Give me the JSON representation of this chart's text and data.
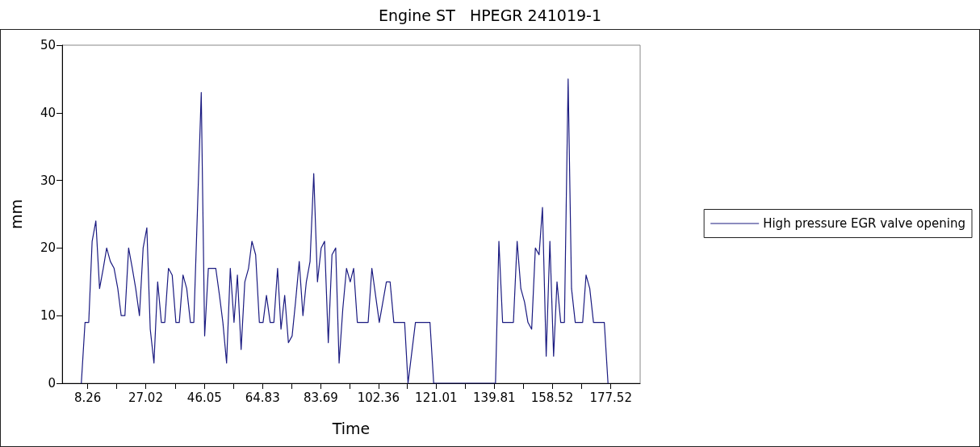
{
  "chart_data": {
    "type": "line",
    "title": "Engine ST   HPEGR 241019-1",
    "xlabel": "Time",
    "ylabel": "mm",
    "x": [
      6.2,
      7.4,
      8.6,
      9.7,
      10.9,
      12.1,
      13.3,
      14.4,
      15.6,
      16.8,
      18.0,
      19.1,
      20.3,
      21.5,
      22.7,
      23.8,
      25.0,
      26.2,
      27.4,
      28.5,
      29.7,
      30.9,
      32.1,
      33.2,
      34.4,
      35.6,
      36.8,
      37.9,
      39.1,
      40.3,
      41.5,
      42.6,
      45.0,
      46.1,
      47.3,
      49.7,
      50.9,
      52.0,
      53.2,
      54.4,
      55.6,
      56.7,
      57.9,
      59.1,
      60.3,
      61.4,
      62.6,
      63.8,
      65.0,
      66.1,
      67.3,
      68.5,
      69.7,
      70.8,
      72.0,
      73.2,
      74.4,
      75.5,
      76.7,
      77.9,
      79.0,
      80.2,
      81.4,
      82.6,
      83.8,
      84.9,
      86.1,
      87.3,
      88.5,
      89.6,
      90.8,
      92.0,
      93.2,
      94.3,
      95.5,
      99.0,
      100.2,
      101.4,
      102.6,
      104.9,
      106.1,
      107.3,
      110.8,
      111.9,
      114.3,
      119.0,
      120.2,
      140.2,
      141.3,
      142.5,
      146.0,
      147.2,
      148.4,
      149.6,
      150.7,
      151.9,
      153.1,
      154.3,
      155.4,
      156.6,
      157.8,
      159.0,
      160.1,
      161.3,
      162.5,
      163.7,
      164.8,
      166.0,
      168.4,
      169.5,
      170.7,
      171.9,
      175.4,
      176.6
    ],
    "series": [
      {
        "name": "High pressure EGR valve opening",
        "color": "#1a1a80",
        "values": [
          0,
          9,
          9,
          21,
          24,
          14,
          17,
          20,
          18,
          17,
          14,
          10,
          10,
          20,
          17,
          14,
          10,
          20,
          23,
          8,
          3,
          15,
          9,
          9,
          17,
          16,
          9,
          9,
          16,
          14,
          9,
          9,
          43,
          7,
          17,
          17,
          13,
          9,
          3,
          17,
          9,
          16,
          5,
          15,
          17,
          21,
          19,
          9,
          9,
          13,
          9,
          9,
          17,
          8,
          13,
          6,
          7,
          12,
          18,
          10,
          15,
          18,
          31,
          15,
          20,
          21,
          6,
          19,
          20,
          3,
          11,
          17,
          15,
          17,
          9,
          9,
          17,
          13,
          9,
          15,
          15,
          9,
          9,
          0,
          9,
          9,
          0,
          0,
          21,
          9,
          9,
          21,
          14,
          12,
          9,
          8,
          20,
          19,
          26,
          4,
          21,
          4,
          15,
          9,
          9,
          45,
          14,
          9,
          9,
          16,
          14,
          9,
          9,
          0
        ]
      }
    ],
    "xlim": [
      0,
      187
    ],
    "xticks": [
      {
        "value": 8.26,
        "label": "8.26"
      },
      {
        "value": 17.64,
        "label": null
      },
      {
        "value": 27.02,
        "label": "27.02"
      },
      {
        "value": 36.5,
        "label": null
      },
      {
        "value": 46.05,
        "label": "46.05"
      },
      {
        "value": 55.4,
        "label": null
      },
      {
        "value": 64.83,
        "label": "64.83"
      },
      {
        "value": 74.3,
        "label": null
      },
      {
        "value": 83.69,
        "label": "83.69"
      },
      {
        "value": 93.0,
        "label": null
      },
      {
        "value": 102.36,
        "label": "102.36"
      },
      {
        "value": 111.7,
        "label": null
      },
      {
        "value": 121.01,
        "label": "121.01"
      },
      {
        "value": 130.4,
        "label": null
      },
      {
        "value": 139.81,
        "label": "139.81"
      },
      {
        "value": 149.2,
        "label": null
      },
      {
        "value": 158.52,
        "label": "158.52"
      },
      {
        "value": 168.0,
        "label": null
      },
      {
        "value": 177.52,
        "label": "177.52"
      }
    ],
    "ylim": [
      0,
      50
    ],
    "yticks": [
      0,
      10,
      20,
      30,
      40,
      50
    ],
    "grid": false,
    "legend": "right",
    "marker": "none",
    "line_style": "solid"
  }
}
